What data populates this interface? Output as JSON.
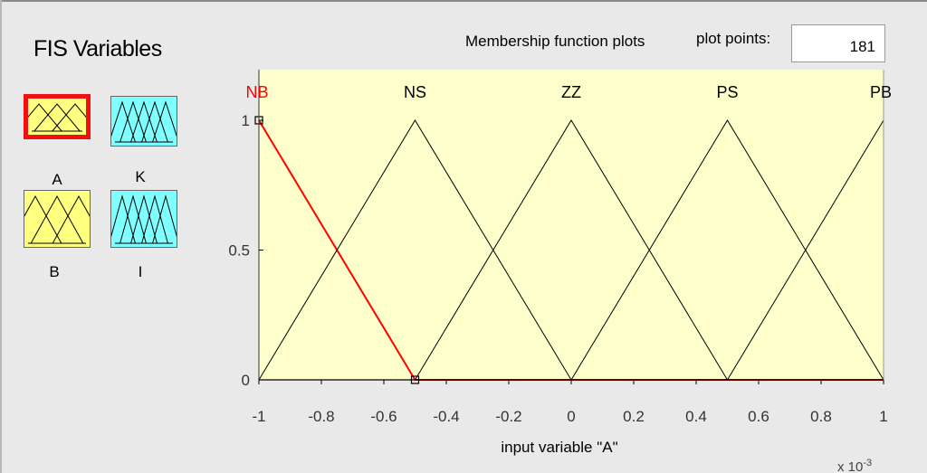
{
  "fis_variables": {
    "title": "FIS Variables",
    "variables": [
      {
        "name": "A",
        "kind": "input",
        "selected": true
      },
      {
        "name": "K",
        "kind": "output",
        "selected": false
      },
      {
        "name": "B",
        "kind": "input",
        "selected": false
      },
      {
        "name": "I",
        "kind": "output",
        "selected": false
      }
    ]
  },
  "plot_header": {
    "title": "Membership function plots",
    "plot_points_label": "plot points:",
    "plot_points_value": "181"
  },
  "colors": {
    "plot_bg": "#ffffcc",
    "input_tile": "#ffff80",
    "output_tile": "#80ffff",
    "selected": "#ff0000",
    "curve": "#000000"
  },
  "chart_data": {
    "type": "line",
    "xlabel": "input variable \"A\"",
    "x_tick_labels": [
      "-1",
      "-0.8",
      "-0.6",
      "-0.4",
      "-0.2",
      "0",
      "0.2",
      "0.4",
      "0.6",
      "0.8",
      "1"
    ],
    "x_ticks": [
      -1,
      -0.8,
      -0.6,
      -0.4,
      -0.2,
      0,
      0.2,
      0.4,
      0.6,
      0.8,
      1
    ],
    "y_tick_labels": [
      "0",
      "0.5",
      "1"
    ],
    "y_ticks": [
      0,
      0.5,
      1
    ],
    "xlim": [
      -1,
      1
    ],
    "ylim": [
      0,
      1
    ],
    "x_scale_label": "x 10",
    "x_scale_exponent": "-3",
    "grid": false,
    "series": [
      {
        "name": "NB",
        "params": [
          -1.5,
          -1,
          -0.5
        ],
        "selected": true
      },
      {
        "name": "NS",
        "params": [
          -1,
          -0.5,
          0
        ],
        "selected": false
      },
      {
        "name": "ZZ",
        "params": [
          -0.5,
          0,
          0.5
        ],
        "selected": false
      },
      {
        "name": "PS",
        "params": [
          0,
          0.5,
          1
        ],
        "selected": false
      },
      {
        "name": "PB",
        "params": [
          0.5,
          1,
          1.5
        ],
        "selected": false
      }
    ]
  }
}
